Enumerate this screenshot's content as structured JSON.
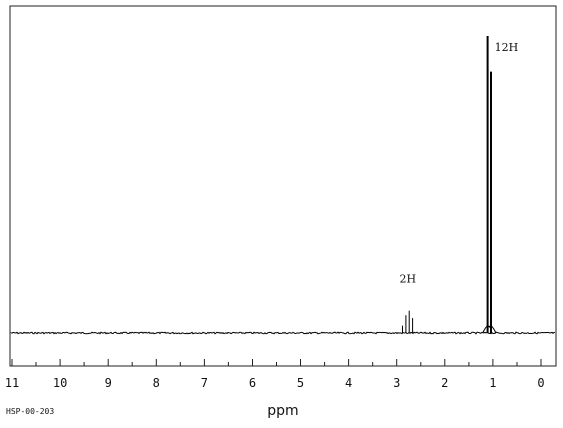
{
  "spectrum_id": "HSP-00-203",
  "chart_data": {
    "type": "line",
    "xlabel": "ppm",
    "xlim": [
      11,
      0
    ],
    "x_reversed": true,
    "ticks": [
      11,
      10,
      9,
      8,
      7,
      6,
      5,
      4,
      3,
      2,
      1,
      0
    ],
    "tick_labels": [
      "11",
      "10",
      "9",
      "8",
      "7",
      "6",
      "5",
      "4",
      "3",
      "2",
      "1",
      "0"
    ],
    "ylim": [
      0,
      1
    ],
    "grid": false,
    "baseline_level": 0,
    "peaks": [
      {
        "ppm": 2.88,
        "height": 0.025
      },
      {
        "ppm": 2.81,
        "height": 0.06
      },
      {
        "ppm": 2.74,
        "height": 0.075
      },
      {
        "ppm": 2.67,
        "height": 0.05
      },
      {
        "ppm": 1.11,
        "height": 1.0
      },
      {
        "ppm": 1.04,
        "height": 0.88
      }
    ],
    "annotations": [
      {
        "text": "2H",
        "ppm": 2.77,
        "level": 0.17
      },
      {
        "text": "12H",
        "ppm": 0.72,
        "level": 0.95
      }
    ]
  }
}
